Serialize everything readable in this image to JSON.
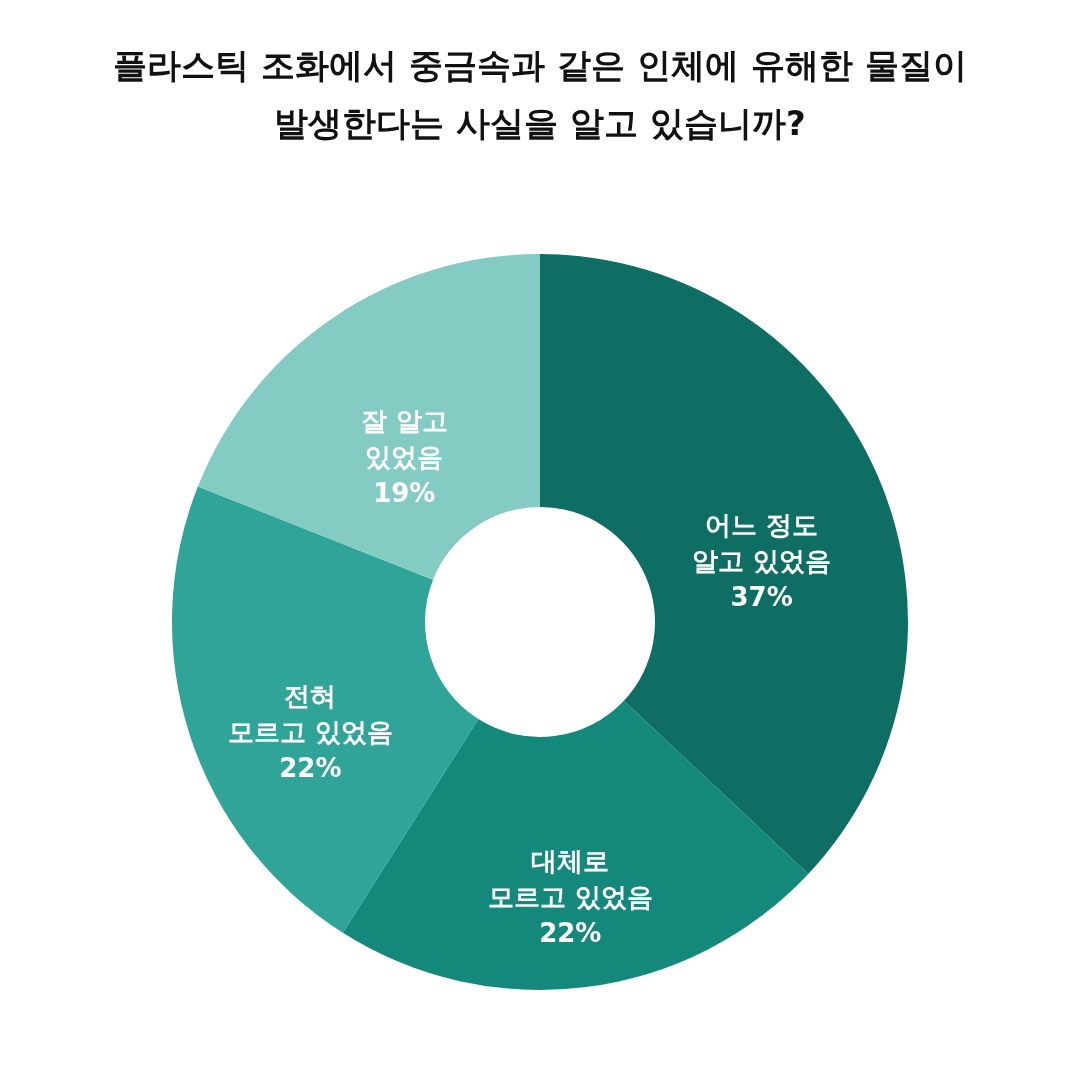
{
  "chart_data": {
    "type": "donut",
    "title": "플라스틱 조화에서 중금속과 같은 인체에 유해한 물질이\n발생한다는 사실을 알고 있습니까?",
    "categories": [
      "어느 정도\n알고 있었음",
      "대체로\n모르고 있었음",
      "전혀\n모르고 있었음",
      "잘 알고\n있었음"
    ],
    "values": [
      37,
      22,
      22,
      19
    ],
    "colors": [
      "#0f6e63",
      "#14897b",
      "#30a498",
      "#84cbc3"
    ],
    "value_labels": [
      "37%",
      "22%",
      "22%",
      "19%"
    ],
    "legend": false
  }
}
